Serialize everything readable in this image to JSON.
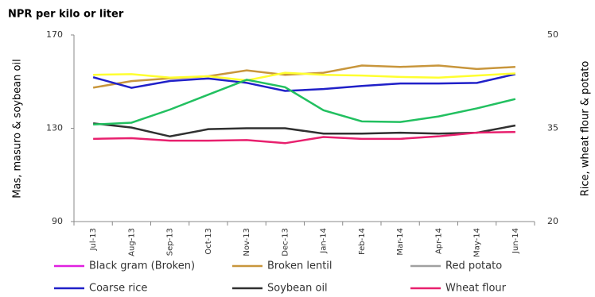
{
  "chart_data": {
    "type": "line",
    "title": "NPR per kilo or liter",
    "ylabel": "Mas, masuro & soybean oil",
    "y2label": "Rice, wheat flour & potato",
    "categories": [
      "Jul-13",
      "Aug-13",
      "Sep-13",
      "Oct-13",
      "Nov-13",
      "Dec-13",
      "Jan-14",
      "Feb-14",
      "Mar-14",
      "Apr-14",
      "May-14",
      "Jun-14"
    ],
    "ylim": [
      90,
      170
    ],
    "yticks": [
      90,
      130,
      170
    ],
    "y2lim": [
      20,
      50
    ],
    "y2ticks": [
      20,
      35,
      50
    ],
    "series": [
      {
        "name": "Black gram (Broken)",
        "color": "#e020e0",
        "values": [
          null,
          null,
          null,
          null,
          null,
          null,
          null,
          null,
          null,
          null,
          null,
          null
        ]
      },
      {
        "name": "Broken lentil",
        "color": "#c8963c",
        "values": [
          147.4,
          150.2,
          151.4,
          152.3,
          154.8,
          152.9,
          153.8,
          156.9,
          156.3,
          156.9,
          155.4,
          156.3
        ]
      },
      {
        "name": "Red potato",
        "color": "#a0a0a0",
        "axis": "y2",
        "values": [
          null,
          null,
          null,
          null,
          null,
          null,
          null,
          null,
          null,
          null,
          null,
          null
        ]
      },
      {
        "name": "Coarse rice",
        "color": "#2020c8",
        "axis": "y2",
        "values": [
          43.2,
          41.5,
          42.6,
          43.0,
          42.3,
          41.0,
          41.3,
          41.8,
          42.2,
          42.2,
          42.3,
          43.7
        ]
      },
      {
        "name": "Soybean oil",
        "color": "#303030",
        "values": [
          132.1,
          130.3,
          126.5,
          129.6,
          130,
          130,
          127.7,
          127.7,
          128.1,
          127.7,
          128.1,
          131.2
        ]
      },
      {
        "name": "Wheat flour",
        "color": "#e8206e",
        "axis": "y2",
        "values": [
          33.3,
          33.4,
          33.0,
          33.0,
          33.1,
          32.6,
          33.6,
          33.3,
          33.3,
          33.7,
          34.3,
          34.4
        ]
      },
      {
        "color": "#ffff30",
        "values": [
          152.9,
          153.2,
          151.7,
          152.3,
          150.5,
          153.8,
          152.9,
          152.6,
          152,
          151.7,
          152.6,
          153.5
        ]
      },
      {
        "color": "#22c060",
        "axis": "y2",
        "values": [
          35.6,
          35.9,
          38.0,
          40.4,
          42.8,
          41.6,
          37.9,
          36.1,
          36.0,
          36.9,
          38.2,
          39.7
        ]
      }
    ]
  }
}
